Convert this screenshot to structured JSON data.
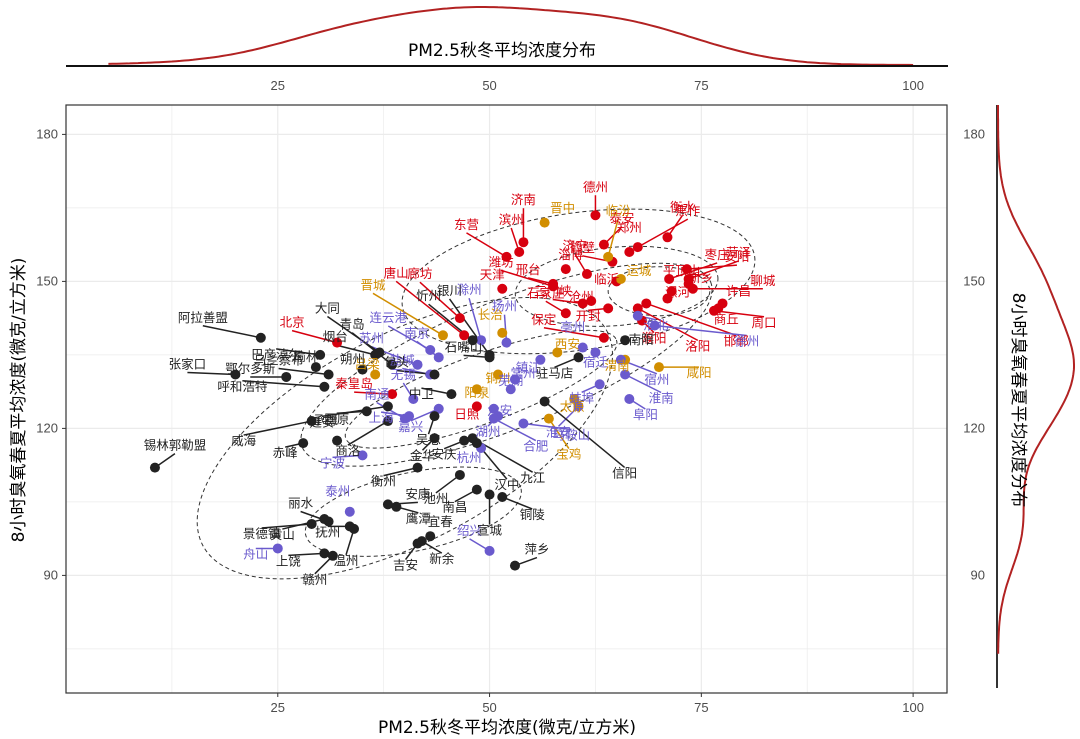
{
  "chart_data": {
    "type": "scatter",
    "title": "",
    "xlabel": "PM2.5秋冬平均浓度(微克/立方米)",
    "ylabel": "8小时臭氧春夏平均浓度(微克/立方米)",
    "xlim": [
      0,
      104
    ],
    "ylim": [
      66,
      186
    ],
    "x_ticks": [
      25,
      50,
      75,
      100
    ],
    "y_ticks": [
      90,
      120,
      150,
      180
    ],
    "grid": true,
    "top_marginal": {
      "title": "PM2.5秋冬平均浓度分布",
      "type": "density",
      "ticks": [
        25,
        50,
        75,
        100
      ]
    },
    "right_marginal": {
      "title": "8小时臭氧春夏平均浓度分布",
      "type": "density",
      "ticks": [
        90,
        120,
        150,
        180
      ]
    },
    "density_color": "#b22222",
    "contour": "dashed 2D density contours",
    "groups": [
      {
        "name": "red",
        "color": "#d7000f"
      },
      {
        "name": "orange",
        "color": "#d18e00"
      },
      {
        "name": "purple",
        "color": "#6a5acd"
      },
      {
        "name": "black",
        "color": "#222222"
      }
    ],
    "points": [
      {
        "label": "德州",
        "x": 62.5,
        "y": 163.5,
        "group": "red"
      },
      {
        "label": "泰安",
        "x": 63.5,
        "y": 157.5,
        "group": "red"
      },
      {
        "label": "焦作",
        "x": 67.5,
        "y": 157.0,
        "group": "red"
      },
      {
        "label": "菏泽",
        "x": 73.5,
        "y": 150.5,
        "group": "red"
      },
      {
        "label": "衡水",
        "x": 71.0,
        "y": 159.0,
        "group": "red"
      },
      {
        "label": "枣庄",
        "x": 71.2,
        "y": 150.5,
        "group": "red"
      },
      {
        "label": "郑州",
        "x": 66.5,
        "y": 156.0,
        "group": "red"
      },
      {
        "label": "平顶山",
        "x": 71.5,
        "y": 148.0,
        "group": "red"
      },
      {
        "label": "安阳",
        "x": 73.3,
        "y": 152.5,
        "group": "red"
      },
      {
        "label": "新乡",
        "x": 73.5,
        "y": 149.5,
        "group": "red"
      },
      {
        "label": "聊城",
        "x": 74.0,
        "y": 148.5,
        "group": "red"
      },
      {
        "label": "济南",
        "x": 54.0,
        "y": 158.0,
        "group": "red"
      },
      {
        "label": "东营",
        "x": 52.0,
        "y": 155.0,
        "group": "red"
      },
      {
        "label": "滨州",
        "x": 53.5,
        "y": 156.0,
        "group": "red"
      },
      {
        "label": "潍坊",
        "x": 57.5,
        "y": 149.0,
        "group": "red"
      },
      {
        "label": "淄博",
        "x": 59.0,
        "y": 152.5,
        "group": "red"
      },
      {
        "label": "济宁",
        "x": 61.5,
        "y": 151.5,
        "group": "red"
      },
      {
        "label": "鹤壁",
        "x": 64.5,
        "y": 154.0,
        "group": "red"
      },
      {
        "label": "邢台",
        "x": 57.5,
        "y": 149.5,
        "group": "red"
      },
      {
        "label": "天津",
        "x": 51.5,
        "y": 148.5,
        "group": "red"
      },
      {
        "label": "三门峡",
        "x": 61.0,
        "y": 145.5,
        "group": "red"
      },
      {
        "label": "石家庄",
        "x": 59.0,
        "y": 143.5,
        "group": "red"
      },
      {
        "label": "沧州",
        "x": 62.0,
        "y": 146.0,
        "group": "red"
      },
      {
        "label": "临沂",
        "x": 65.0,
        "y": 150.0,
        "group": "red"
      },
      {
        "label": "漯河",
        "x": 71.0,
        "y": 146.5,
        "group": "red"
      },
      {
        "label": "许昌",
        "x": 77.5,
        "y": 145.5,
        "group": "red"
      },
      {
        "label": "商丘",
        "x": 77.0,
        "y": 144.5,
        "group": "red"
      },
      {
        "label": "周口",
        "x": 76.5,
        "y": 144.0,
        "group": "red"
      },
      {
        "label": "开封",
        "x": 64.0,
        "y": 144.5,
        "group": "red"
      },
      {
        "label": "邯郸",
        "x": 68.5,
        "y": 145.5,
        "group": "red"
      },
      {
        "label": "洛阳",
        "x": 67.5,
        "y": 144.5,
        "group": "red"
      },
      {
        "label": "濮阳",
        "x": 68.0,
        "y": 142.0,
        "group": "red"
      },
      {
        "label": "唐山",
        "x": 47.0,
        "y": 139.0,
        "group": "red"
      },
      {
        "label": "廊坊",
        "x": 46.5,
        "y": 142.5,
        "group": "red"
      },
      {
        "label": "保定",
        "x": 63.5,
        "y": 138.5,
        "group": "red"
      },
      {
        "label": "北京",
        "x": 32.0,
        "y": 137.5,
        "group": "red"
      },
      {
        "label": "秦皇岛",
        "x": 38.5,
        "y": 127.0,
        "group": "red"
      },
      {
        "label": "日照",
        "x": 48.5,
        "y": 124.5,
        "group": "red"
      },
      {
        "label": "晋中",
        "x": 56.5,
        "y": 162.0,
        "group": "orange"
      },
      {
        "label": "临汾",
        "x": 64.0,
        "y": 155.0,
        "group": "orange"
      },
      {
        "label": "运城",
        "x": 65.5,
        "y": 150.5,
        "group": "orange"
      },
      {
        "label": "晋城",
        "x": 44.5,
        "y": 139.0,
        "group": "orange"
      },
      {
        "label": "长治",
        "x": 51.5,
        "y": 139.5,
        "group": "orange"
      },
      {
        "label": "西安",
        "x": 58.0,
        "y": 135.5,
        "group": "orange"
      },
      {
        "label": "铜川",
        "x": 51.0,
        "y": 131.0,
        "group": "orange"
      },
      {
        "label": "吕梁",
        "x": 36.5,
        "y": 131.0,
        "group": "orange"
      },
      {
        "label": "阳泉",
        "x": 48.5,
        "y": 128.0,
        "group": "orange"
      },
      {
        "label": "太原",
        "x": 60.0,
        "y": 126.0,
        "group": "orange"
      },
      {
        "label": "宝鸡",
        "x": 57.0,
        "y": 122.0,
        "group": "orange"
      },
      {
        "label": "咸阳",
        "x": 70.0,
        "y": 132.5,
        "group": "orange"
      },
      {
        "label": "渭南",
        "x": 66.0,
        "y": 134.0,
        "group": "orange"
      },
      {
        "label": "滁州",
        "x": 49.0,
        "y": 138.0,
        "group": "purple"
      },
      {
        "label": "扬州",
        "x": 52.0,
        "y": 137.5,
        "group": "purple"
      },
      {
        "label": "连云港",
        "x": 43.0,
        "y": 136.0,
        "group": "purple"
      },
      {
        "label": "苏州",
        "x": 41.5,
        "y": 133.0,
        "group": "purple"
      },
      {
        "label": "南京",
        "x": 44.0,
        "y": 134.5,
        "group": "purple"
      },
      {
        "label": "盐城",
        "x": 43.0,
        "y": 131.0,
        "group": "purple"
      },
      {
        "label": "镇江",
        "x": 56.0,
        "y": 134.0,
        "group": "purple"
      },
      {
        "label": "常州",
        "x": 53.0,
        "y": 130.0,
        "group": "purple"
      },
      {
        "label": "亳州",
        "x": 61.0,
        "y": 136.5,
        "group": "purple"
      },
      {
        "label": "宿迁",
        "x": 62.5,
        "y": 135.5,
        "group": "purple"
      },
      {
        "label": "淮北",
        "x": 67.5,
        "y": 143.0,
        "group": "purple"
      },
      {
        "label": "宿州",
        "x": 65.5,
        "y": 134.0,
        "group": "purple"
      },
      {
        "label": "徐州",
        "x": 69.5,
        "y": 141.0,
        "group": "purple"
      },
      {
        "label": "芜湖",
        "x": 52.5,
        "y": 128.0,
        "group": "purple"
      },
      {
        "label": "六安",
        "x": 50.5,
        "y": 124.0,
        "group": "purple"
      },
      {
        "label": "南通",
        "x": 40.0,
        "y": 122.0,
        "group": "purple"
      },
      {
        "label": "无锡",
        "x": 41.0,
        "y": 126.0,
        "group": "purple"
      },
      {
        "label": "上海",
        "x": 40.5,
        "y": 122.5,
        "group": "purple"
      },
      {
        "label": "嘉兴",
        "x": 44.0,
        "y": 124.0,
        "group": "purple"
      },
      {
        "label": "湖州",
        "x": 51.0,
        "y": 122.5,
        "group": "purple"
      },
      {
        "label": "马鞍山",
        "x": 54.0,
        "y": 121.0,
        "group": "purple"
      },
      {
        "label": "合肥",
        "x": 50.5,
        "y": 122.0,
        "group": "purple"
      },
      {
        "label": "杭州",
        "x": 49.0,
        "y": 116.0,
        "group": "purple"
      },
      {
        "label": "蚌埠",
        "x": 63.0,
        "y": 129.0,
        "group": "purple"
      },
      {
        "label": "淮安",
        "x": 60.5,
        "y": 124.5,
        "group": "purple"
      },
      {
        "label": "阜阳",
        "x": 66.5,
        "y": 126.0,
        "group": "purple"
      },
      {
        "label": "淮南",
        "x": 66.0,
        "y": 131.0,
        "group": "purple"
      },
      {
        "label": "宁波",
        "x": 35.0,
        "y": 114.5,
        "group": "purple"
      },
      {
        "label": "泰州",
        "x": 33.5,
        "y": 103.0,
        "group": "purple"
      },
      {
        "label": "绍兴",
        "x": 50.0,
        "y": 95.0,
        "group": "purple"
      },
      {
        "label": "舟山",
        "x": 25.0,
        "y": 95.5,
        "group": "purple"
      },
      {
        "label": "阿拉善盟",
        "x": 23.0,
        "y": 138.5,
        "group": "black"
      },
      {
        "label": "巴彦淖尔",
        "x": 30.0,
        "y": 135.0,
        "group": "black"
      },
      {
        "label": "张家口",
        "x": 20.0,
        "y": 131.0,
        "group": "black"
      },
      {
        "label": "鄂尔多斯",
        "x": 26.0,
        "y": 130.5,
        "group": "black"
      },
      {
        "label": "呼和浩特",
        "x": 30.5,
        "y": 128.5,
        "group": "black"
      },
      {
        "label": "乌兰察布",
        "x": 31.0,
        "y": 131.0,
        "group": "black"
      },
      {
        "label": "榆林",
        "x": 29.5,
        "y": 132.5,
        "group": "black"
      },
      {
        "label": "烟台",
        "x": 36.5,
        "y": 135.0,
        "group": "black"
      },
      {
        "label": "朔州",
        "x": 35.0,
        "y": 132.0,
        "group": "black"
      },
      {
        "label": "大同",
        "x": 37.0,
        "y": 135.5,
        "group": "black"
      },
      {
        "label": "青岛",
        "x": 38.5,
        "y": 133.0,
        "group": "black"
      },
      {
        "label": "银川",
        "x": 50.0,
        "y": 135.0,
        "group": "black"
      },
      {
        "label": "忻州",
        "x": 48.0,
        "y": 138.0,
        "group": "black"
      },
      {
        "label": "石嘴山",
        "x": 50.0,
        "y": 134.5,
        "group": "black"
      },
      {
        "label": "包头",
        "x": 43.5,
        "y": 131.0,
        "group": "black"
      },
      {
        "label": "中卫",
        "x": 45.5,
        "y": 127.0,
        "group": "black"
      },
      {
        "label": "驻马店",
        "x": 60.5,
        "y": 134.5,
        "group": "black"
      },
      {
        "label": "南阳",
        "x": 66.0,
        "y": 138.0,
        "group": "black"
      },
      {
        "label": "威海",
        "x": 29.0,
        "y": 121.5,
        "group": "black"
      },
      {
        "label": "延安",
        "x": 38.0,
        "y": 124.5,
        "group": "black"
      },
      {
        "label": "固原",
        "x": 35.5,
        "y": 123.5,
        "group": "black"
      },
      {
        "label": "承德",
        "x": 32.0,
        "y": 117.5,
        "group": "black"
      },
      {
        "label": "商洛",
        "x": 38.0,
        "y": 121.5,
        "group": "black"
      },
      {
        "label": "吴忠",
        "x": 43.5,
        "y": 122.5,
        "group": "black"
      },
      {
        "label": "赤峰",
        "x": 28.0,
        "y": 117.0,
        "group": "black"
      },
      {
        "label": "锡林郭勒盟",
        "x": 10.5,
        "y": 112.0,
        "group": "black"
      },
      {
        "label": "金华",
        "x": 43.5,
        "y": 118.0,
        "group": "black"
      },
      {
        "label": "安庆",
        "x": 47.0,
        "y": 117.5,
        "group": "black"
      },
      {
        "label": "衡州",
        "x": 41.5,
        "y": 112.0,
        "group": "black"
      },
      {
        "label": "池州",
        "x": 46.5,
        "y": 110.5,
        "group": "black"
      },
      {
        "label": "汉中",
        "x": 48.5,
        "y": 117.0,
        "group": "black"
      },
      {
        "label": "九江",
        "x": 48.0,
        "y": 118.0,
        "group": "black"
      },
      {
        "label": "信阳",
        "x": 56.5,
        "y": 125.5,
        "group": "black"
      },
      {
        "label": "南昌",
        "x": 48.5,
        "y": 107.5,
        "group": "black"
      },
      {
        "label": "宣城",
        "x": 50.0,
        "y": 106.5,
        "group": "black"
      },
      {
        "label": "铜陵",
        "x": 51.5,
        "y": 106.0,
        "group": "black"
      },
      {
        "label": "安康",
        "x": 38.0,
        "y": 104.5,
        "group": "black"
      },
      {
        "label": "鹰潭",
        "x": 39.0,
        "y": 104.0,
        "group": "black"
      },
      {
        "label": "丽水",
        "x": 31.0,
        "y": 101.0,
        "group": "black"
      },
      {
        "label": "景德镇",
        "x": 29.0,
        "y": 100.5,
        "group": "black"
      },
      {
        "label": "黄山",
        "x": 30.5,
        "y": 101.5,
        "group": "black"
      },
      {
        "label": "抚州",
        "x": 33.5,
        "y": 100.0,
        "group": "black"
      },
      {
        "label": "温州",
        "x": 34.0,
        "y": 99.5,
        "group": "black"
      },
      {
        "label": "上饶",
        "x": 30.5,
        "y": 94.5,
        "group": "black"
      },
      {
        "label": "赣州",
        "x": 31.5,
        "y": 94.0,
        "group": "black"
      },
      {
        "label": "宜春",
        "x": 43.0,
        "y": 98.0,
        "group": "black"
      },
      {
        "label": "吉安",
        "x": 41.5,
        "y": 96.5,
        "group": "black"
      },
      {
        "label": "新余",
        "x": 42.0,
        "y": 97.0,
        "group": "black"
      },
      {
        "label": "萍乡",
        "x": 53.0,
        "y": 92.0,
        "group": "black"
      }
    ]
  }
}
